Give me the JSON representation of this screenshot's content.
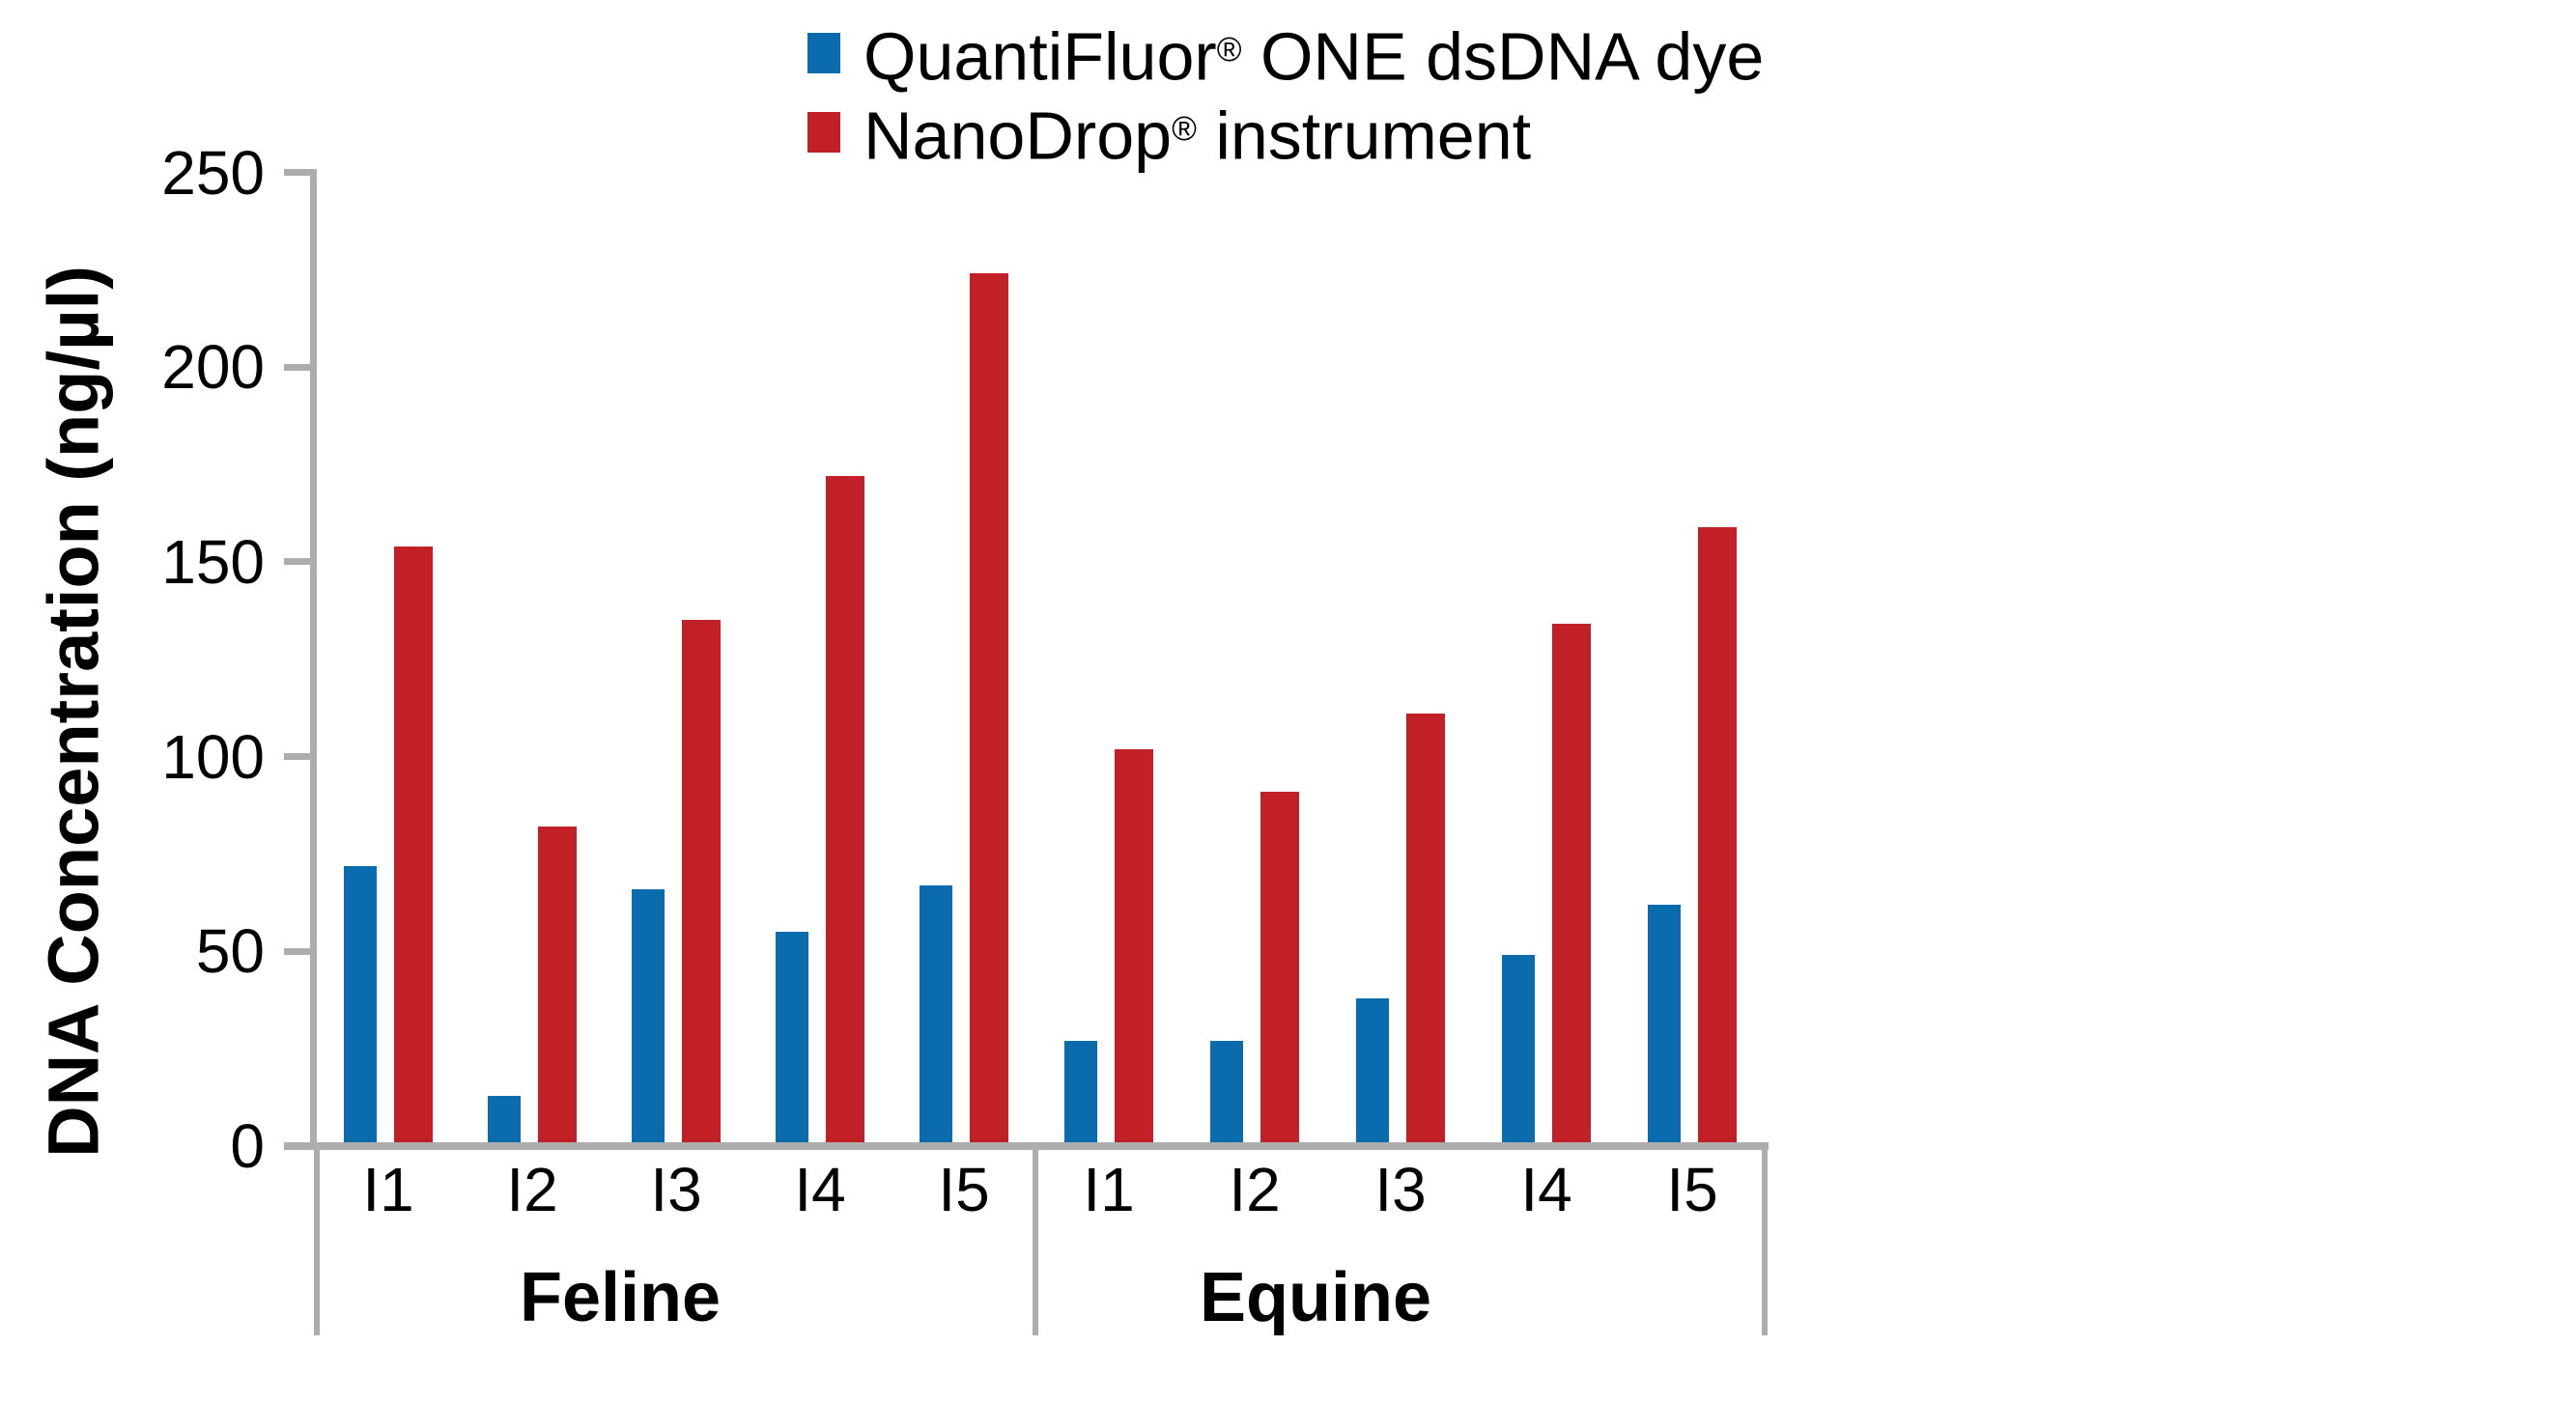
{
  "legend": {
    "items": [
      {
        "label_pre": "QuantiFluor",
        "label_reg": "®",
        "label_post": " ONE dsDNA dye",
        "color": "#0a6bad"
      },
      {
        "label_pre": "NanoDrop",
        "label_reg": "®",
        "label_post": " instrument",
        "color": "#c02026"
      }
    ]
  },
  "y_axis": {
    "title": "DNA Concentration (ng/µl)",
    "tick_labels": [
      "0",
      "50",
      "100",
      "150",
      "200",
      "250"
    ]
  },
  "chart_data": {
    "type": "bar",
    "title": "",
    "ylabel": "DNA Concentration (ng/µl)",
    "xlabel": "",
    "ylim": [
      0,
      250
    ],
    "yticks": [
      0,
      50,
      100,
      150,
      200,
      250
    ],
    "grid": false,
    "legend_position": "top",
    "axis_color": "#adadad",
    "text_color": "#000000",
    "series_names": [
      "QuantiFluor® ONE dsDNA dye",
      "NanoDrop® instrument"
    ],
    "series_colors": [
      "#0a6bad",
      "#c02026"
    ],
    "groups": [
      {
        "label": "Feline",
        "categories": [
          "I1",
          "I2",
          "I3",
          "I4",
          "I5"
        ],
        "series": [
          {
            "name": "QuantiFluor® ONE dsDNA dye",
            "values": [
              71,
              12,
              65,
              54,
              66
            ]
          },
          {
            "name": "NanoDrop® instrument",
            "values": [
              153,
              81,
              134,
              171,
              223
            ]
          }
        ]
      },
      {
        "label": "Equine",
        "categories": [
          "I1",
          "I2",
          "I3",
          "I4",
          "I5"
        ],
        "series": [
          {
            "name": "QuantiFluor® ONE dsDNA dye",
            "values": [
              26,
              26,
              37,
              48,
              61
            ]
          },
          {
            "name": "NanoDrop® instrument",
            "values": [
              101,
              90,
              110,
              133,
              158
            ]
          }
        ]
      }
    ]
  }
}
